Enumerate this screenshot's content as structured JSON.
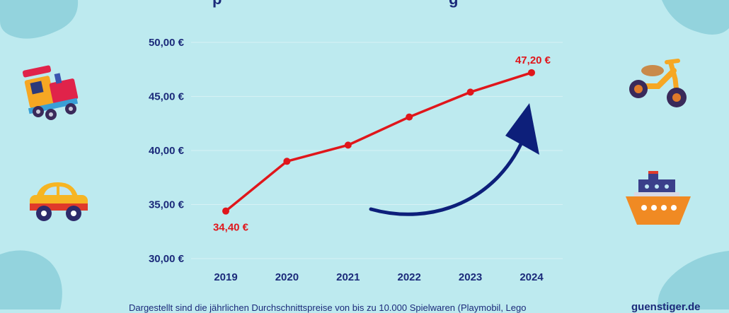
{
  "title_fragment": "p",
  "title_fragment_2": "g",
  "footnote": "Dargestellt sind die jährlichen Durchschnittspreise von bis zu 10.000 Spielwaren (Playmobil, Lego",
  "brand": "guenstiger.de",
  "colors": {
    "background": "#bdeaef",
    "blob": "#93d3dd",
    "axis_text": "#1b2a7a",
    "line": "#e0161b",
    "arrow": "#0d1f7a",
    "grid": "#d6f1f4"
  },
  "illustrations": [
    "toy-train-icon",
    "toy-car-icon",
    "balance-bike-icon",
    "toy-ship-icon"
  ],
  "chart_data": {
    "type": "line",
    "x": [
      "2019",
      "2020",
      "2021",
      "2022",
      "2023",
      "2024"
    ],
    "series": [
      {
        "values": [
          34.4,
          39.0,
          40.5,
          43.1,
          45.4,
          47.2
        ]
      }
    ],
    "yticks": [
      "30,00 €",
      "35,00 €",
      "40,00 €",
      "45,00 €",
      "50,00 €"
    ],
    "ylim": [
      30,
      50
    ],
    "grid": true,
    "annotations": [
      {
        "text": "34,40 €",
        "at_index": 0
      },
      {
        "text": "47,20 €",
        "at_index": 5
      }
    ]
  }
}
